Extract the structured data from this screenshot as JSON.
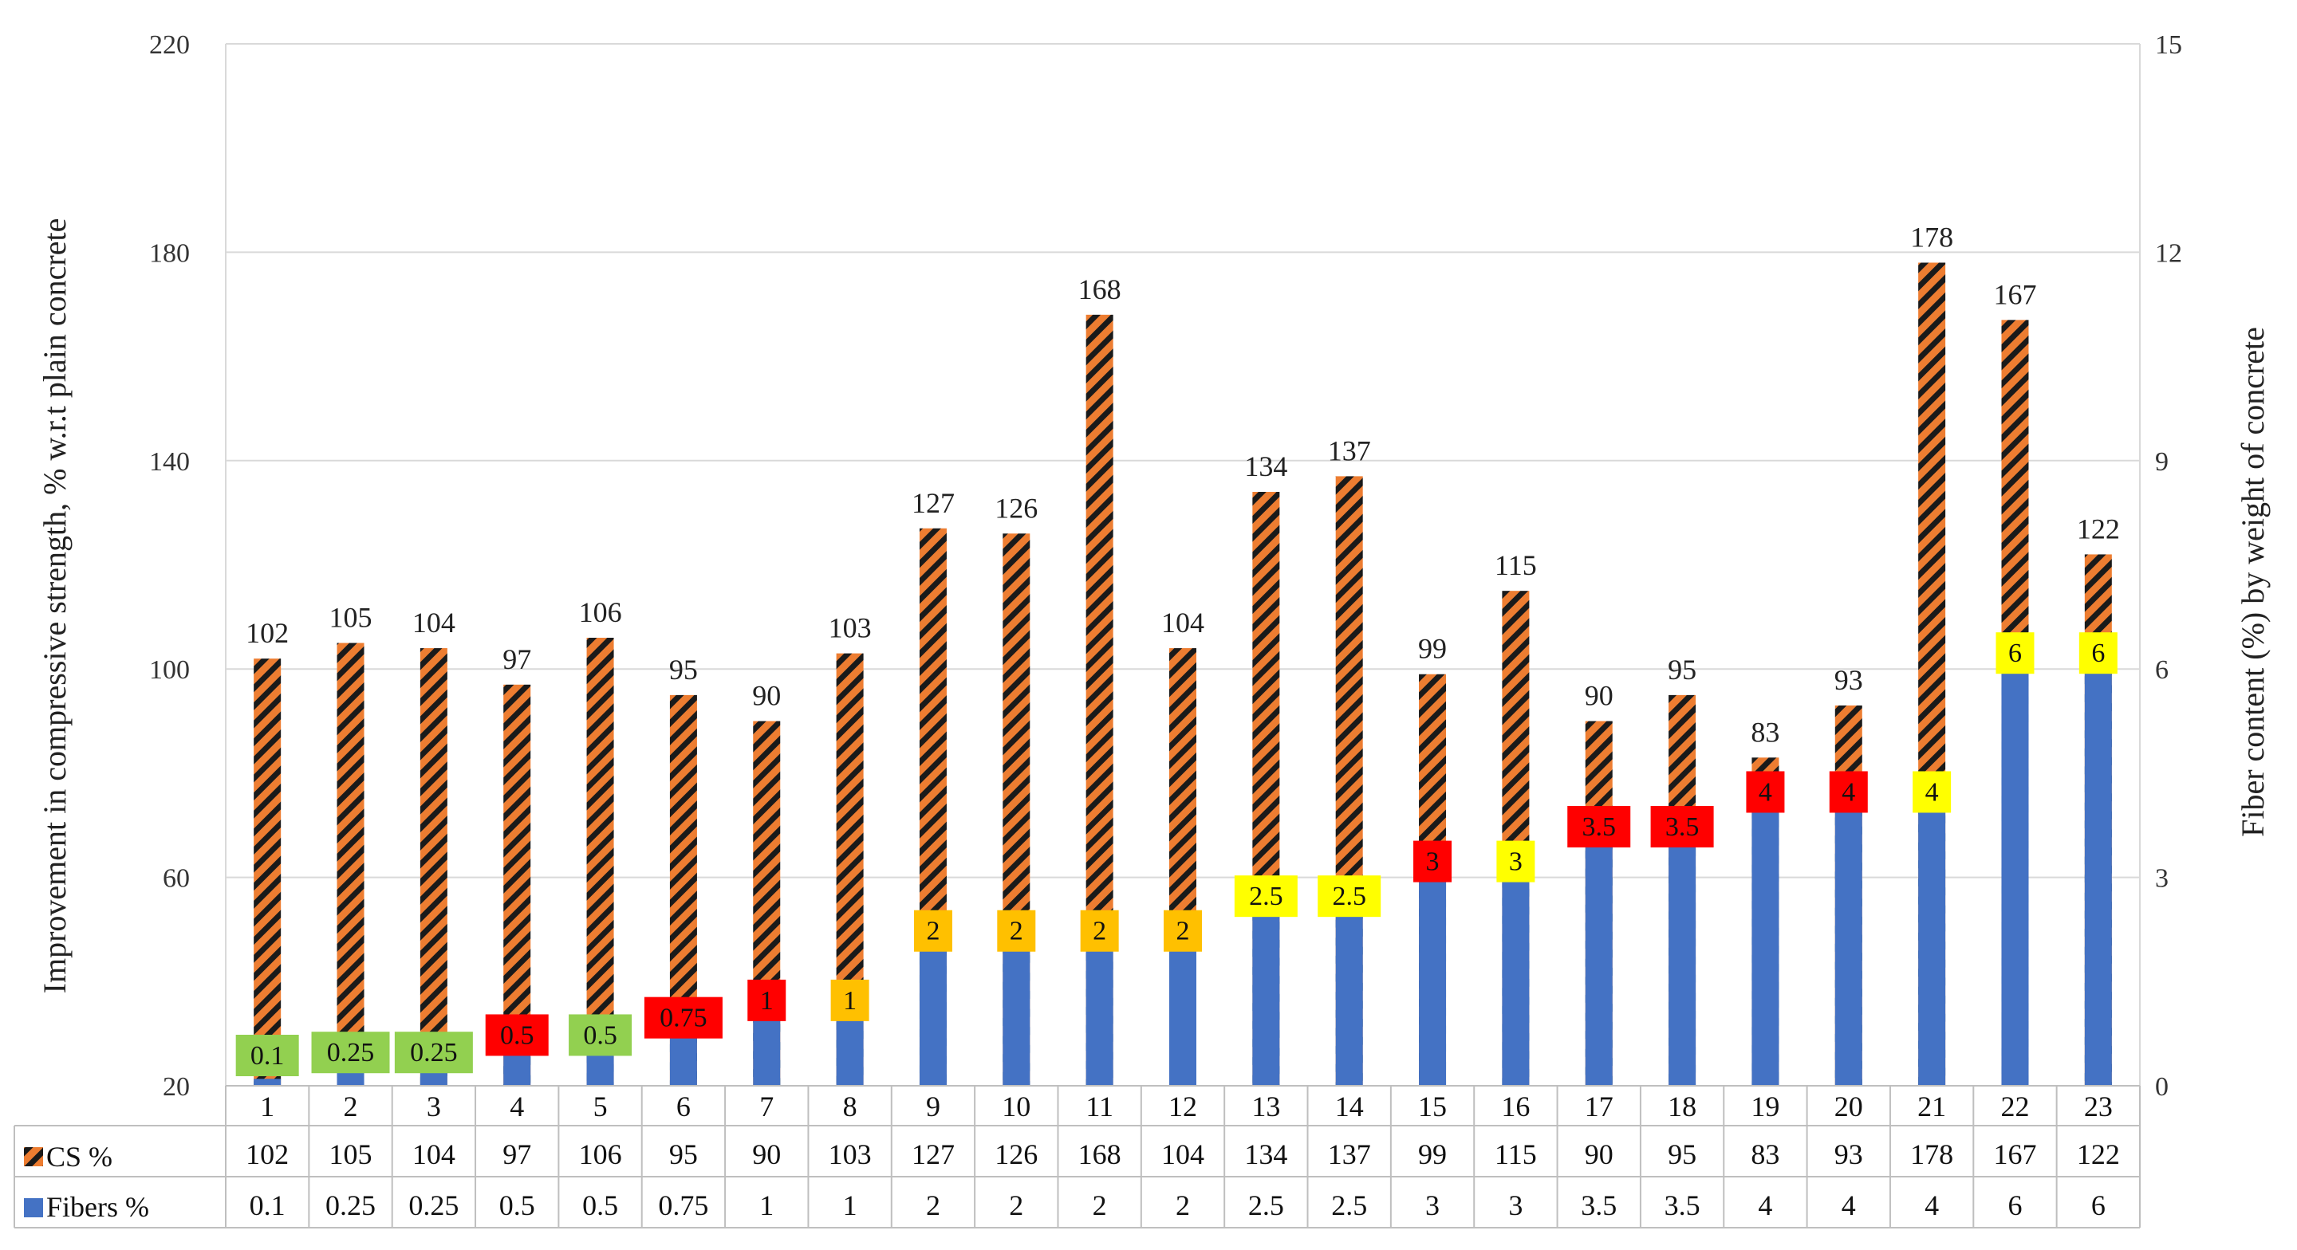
{
  "chart_data": {
    "type": "bar",
    "categories": [
      "1",
      "2",
      "3",
      "4",
      "5",
      "6",
      "7",
      "8",
      "9",
      "10",
      "11",
      "12",
      "13",
      "14",
      "15",
      "16",
      "17",
      "18",
      "19",
      "20",
      "21",
      "22",
      "23"
    ],
    "series": [
      {
        "name": "CS %",
        "axis": "left",
        "values": [
          102,
          105,
          104,
          97,
          106,
          95,
          90,
          103,
          127,
          126,
          168,
          104,
          134,
          137,
          99,
          115,
          90,
          95,
          83,
          93,
          178,
          167,
          122
        ]
      },
      {
        "name": "Fibers %",
        "axis": "right",
        "values": [
          0.1,
          0.25,
          0.25,
          0.5,
          0.5,
          0.75,
          1,
          1,
          2,
          2,
          2,
          2,
          2.5,
          2.5,
          3,
          3,
          3.5,
          3.5,
          4,
          4,
          4,
          6,
          6
        ]
      }
    ],
    "fiber_label_colors": [
      "#92d050",
      "#92d050",
      "#92d050",
      "#ff0000",
      "#92d050",
      "#ff0000",
      "#ff0000",
      "#ffc000",
      "#ffc000",
      "#ffc000",
      "#ffc000",
      "#ffc000",
      "#ffff00",
      "#ffff00",
      "#ff0000",
      "#ffff00",
      "#ff0000",
      "#ff0000",
      "#ff0000",
      "#ff0000",
      "#ffff00",
      "#ffff00",
      "#ffff00"
    ],
    "ylabel": "Improvement  in compressive strength,  % w.r.t plain concrete",
    "y2label": "Fiber content (%) by weight of concrete",
    "ylim": [
      20,
      220
    ],
    "yticks": [
      20,
      60,
      100,
      140,
      180,
      220
    ],
    "y2lim": [
      0,
      15
    ],
    "y2ticks": [
      0,
      3,
      6,
      9,
      12,
      15
    ],
    "legend": {
      "cs": "CS %",
      "fibers": "Fibers %"
    },
    "colors": {
      "cs_fill": "#ed7d31",
      "cs_stripe": "#1a1a1a",
      "fibers": "#4472c4",
      "grid": "#d9d9d9"
    }
  }
}
